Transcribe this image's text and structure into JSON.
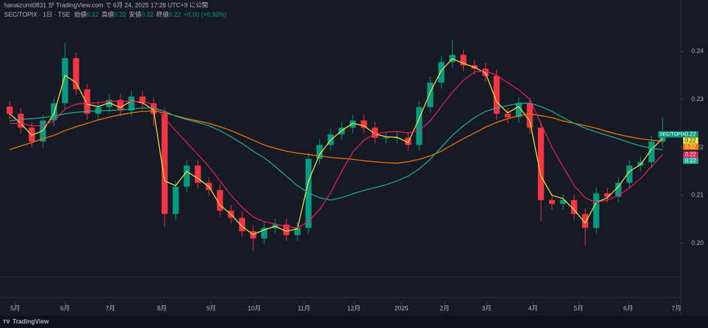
{
  "header": {
    "publisher": "hanaizumi0831 が TradingView.com で 6月 24, 2025 17:28 UTC+9 に公開"
  },
  "chart_data": {
    "type": "candlestick",
    "title": "SEC/TOPIX · 1日 · TSE",
    "quote": {
      "labels": [
        "始値",
        "高値",
        "安値",
        "終値"
      ],
      "values": [
        0.22,
        0.22,
        0.22,
        0.22
      ],
      "change": "+0.00 (+0.93%)"
    },
    "up_color": "#089981",
    "down_color": "#f23645",
    "xlim": [
      -0.5,
      60.6
    ],
    "xticks": [
      {
        "value": 0.5,
        "label": "5月"
      },
      {
        "value": 5,
        "label": "6月"
      },
      {
        "value": 9.1,
        "label": "7月"
      },
      {
        "value": 13.75,
        "label": "8月"
      },
      {
        "value": 18.2,
        "label": "9月"
      },
      {
        "value": 22.1,
        "label": "10月"
      },
      {
        "value": 26.6,
        "label": "11月"
      },
      {
        "value": 31.1,
        "label": "12月"
      },
      {
        "value": 35.4,
        "label": "2025"
      },
      {
        "value": 39.3,
        "label": "2月"
      },
      {
        "value": 43.1,
        "label": "3月"
      },
      {
        "value": 47.3,
        "label": "4月"
      },
      {
        "value": 51.4,
        "label": "5月"
      },
      {
        "value": 55.9,
        "label": "6月"
      },
      {
        "value": 60.25,
        "label": "7月"
      }
    ],
    "ylim": [
      0.193,
      0.249
    ],
    "yticks": [
      {
        "value": 0.2,
        "label": "0.20"
      },
      0.21,
      0.22,
      0.23,
      0.24
    ],
    "open": [
      0.2285,
      0.227,
      0.2241,
      0.2212,
      0.2256,
      0.2292,
      0.2386,
      0.2321,
      0.227,
      0.2284,
      0.2299,
      0.2277,
      0.2306,
      0.2292,
      0.227,
      0.2061,
      0.2118,
      0.2162,
      0.2126,
      0.2111,
      0.2068,
      0.2053,
      0.2025,
      0.201,
      0.2032,
      0.2039,
      0.2017,
      0.2032,
      0.2176,
      0.2205,
      0.2227,
      0.2241,
      0.2256,
      0.2241,
      0.222,
      0.222,
      0.222,
      0.2205,
      0.2284,
      0.2335,
      0.2378,
      0.2393,
      0.2371,
      0.2364,
      0.2349,
      0.227,
      0.2263,
      0.2292,
      0.2241,
      0.209,
      0.2082,
      0.209,
      0.2061,
      0.2032,
      0.2104,
      0.2097,
      0.2126,
      0.2162,
      0.2169,
      0.2212
    ],
    "high": [
      0.2297,
      0.2282,
      0.2253,
      0.2268,
      0.2304,
      0.2418,
      0.2398,
      0.2333,
      0.2296,
      0.2311,
      0.2311,
      0.2318,
      0.2318,
      0.2304,
      0.2282,
      0.213,
      0.2174,
      0.2174,
      0.2138,
      0.2123,
      0.208,
      0.2065,
      0.2037,
      0.2044,
      0.2051,
      0.2051,
      0.2044,
      0.2188,
      0.2217,
      0.2239,
      0.2253,
      0.2268,
      0.2268,
      0.2253,
      0.2232,
      0.2232,
      0.2232,
      0.2296,
      0.2347,
      0.239,
      0.2425,
      0.2405,
      0.2383,
      0.2376,
      0.2361,
      0.2282,
      0.2304,
      0.2304,
      0.2253,
      0.2102,
      0.2102,
      0.2102,
      0.2073,
      0.2116,
      0.2116,
      0.2138,
      0.2174,
      0.2181,
      0.2224,
      0.2262
    ],
    "low": [
      0.2258,
      0.2229,
      0.22,
      0.22,
      0.2244,
      0.228,
      0.2309,
      0.2258,
      0.2258,
      0.2272,
      0.2265,
      0.2265,
      0.228,
      0.2244,
      0.2035,
      0.2049,
      0.2106,
      0.2114,
      0.2099,
      0.2056,
      0.2041,
      0.2013,
      0.1985,
      0.1998,
      0.202,
      0.2005,
      0.2005,
      0.202,
      0.2164,
      0.2193,
      0.2215,
      0.2229,
      0.2229,
      0.2208,
      0.2208,
      0.2208,
      0.2193,
      0.2193,
      0.2272,
      0.2323,
      0.2366,
      0.2359,
      0.2352,
      0.2337,
      0.2258,
      0.2251,
      0.2251,
      0.2229,
      0.2045,
      0.207,
      0.207,
      0.2049,
      0.1995,
      0.202,
      0.2085,
      0.2085,
      0.2114,
      0.215,
      0.2157,
      0.22
    ],
    "close": [
      0.227,
      0.2241,
      0.2212,
      0.2256,
      0.2292,
      0.2386,
      0.2321,
      0.227,
      0.2284,
      0.2299,
      0.2277,
      0.2306,
      0.2292,
      0.227,
      0.2061,
      0.2118,
      0.2162,
      0.2126,
      0.2111,
      0.2068,
      0.2053,
      0.2025,
      0.201,
      0.2032,
      0.2039,
      0.2017,
      0.2032,
      0.2176,
      0.2205,
      0.2227,
      0.2241,
      0.2256,
      0.2241,
      0.222,
      0.222,
      0.222,
      0.2205,
      0.2284,
      0.2335,
      0.2378,
      0.2393,
      0.2371,
      0.2364,
      0.2349,
      0.227,
      0.2263,
      0.2292,
      0.2241,
      0.209,
      0.2082,
      0.209,
      0.2061,
      0.2032,
      0.2104,
      0.2097,
      0.2126,
      0.2162,
      0.2169,
      0.2212,
      0.2227
    ],
    "series": [
      {
        "color": "#f7e43a",
        "values": [
          0.227,
          0.225,
          0.2225,
          0.2235,
          0.227,
          0.235,
          0.2335,
          0.229,
          0.2285,
          0.2293,
          0.2283,
          0.2297,
          0.2293,
          0.2278,
          0.213,
          0.212,
          0.215,
          0.2135,
          0.2118,
          0.208,
          0.206,
          0.2035,
          0.2018,
          0.2028,
          0.2035,
          0.2025,
          0.203,
          0.213,
          0.2185,
          0.2215,
          0.2235,
          0.225,
          0.2245,
          0.2228,
          0.2222,
          0.2221,
          0.221,
          0.226,
          0.2315,
          0.236,
          0.2385,
          0.2375,
          0.2367,
          0.2355,
          0.2295,
          0.2272,
          0.2285,
          0.2255,
          0.214,
          0.21,
          0.2093,
          0.207,
          0.2042,
          0.2085,
          0.2095,
          0.2118,
          0.215,
          0.2164,
          0.2196,
          0.2218
        ]
      },
      {
        "color": "#f57c00",
        "values": [
          0.2195,
          0.2203,
          0.221,
          0.2218,
          0.2225,
          0.2235,
          0.2243,
          0.225,
          0.2257,
          0.2263,
          0.2268,
          0.2272,
          0.2275,
          0.2276,
          0.2272,
          0.2266,
          0.226,
          0.2255,
          0.225,
          0.2243,
          0.2235,
          0.2225,
          0.2215,
          0.2205,
          0.2198,
          0.2192,
          0.2188,
          0.2185,
          0.2182,
          0.2179,
          0.2177,
          0.2175,
          0.2172,
          0.217,
          0.2168,
          0.2167,
          0.217,
          0.2175,
          0.2182,
          0.2192,
          0.2205,
          0.2218,
          0.223,
          0.2242,
          0.2252,
          0.226,
          0.2266,
          0.227,
          0.2266,
          0.2262,
          0.2255,
          0.225,
          0.2245,
          0.224,
          0.2233,
          0.2227,
          0.2222,
          0.2218,
          0.2215,
          0.2213
        ]
      },
      {
        "color": "#e91e63",
        "values": [
          0.225,
          0.225,
          0.2245,
          0.2245,
          0.2255,
          0.228,
          0.229,
          0.2292,
          0.2293,
          0.2296,
          0.2296,
          0.2296,
          0.2295,
          0.229,
          0.226,
          0.2235,
          0.221,
          0.2185,
          0.216,
          0.213,
          0.21,
          0.2075,
          0.2055,
          0.2045,
          0.204,
          0.2035,
          0.2032,
          0.2045,
          0.207,
          0.2105,
          0.215,
          0.219,
          0.2215,
          0.2228,
          0.2232,
          0.2233,
          0.223,
          0.2235,
          0.2255,
          0.2285,
          0.2315,
          0.234,
          0.2357,
          0.236,
          0.235,
          0.2335,
          0.232,
          0.23,
          0.225,
          0.22,
          0.216,
          0.212,
          0.2095,
          0.2085,
          0.209,
          0.21,
          0.2115,
          0.2135,
          0.216,
          0.2185
        ]
      },
      {
        "color": "#22ab94",
        "values": [
          0.2255,
          0.2258,
          0.226,
          0.2262,
          0.2265,
          0.227,
          0.2273,
          0.2275,
          0.2276,
          0.2277,
          0.2278,
          0.228,
          0.2282,
          0.2282,
          0.2275,
          0.2265,
          0.2258,
          0.2252,
          0.2245,
          0.2235,
          0.2222,
          0.2208,
          0.2192,
          0.2178,
          0.216,
          0.214,
          0.212,
          0.2105,
          0.2095,
          0.209,
          0.2095,
          0.2103,
          0.211,
          0.2116,
          0.2122,
          0.213,
          0.214,
          0.2155,
          0.2175,
          0.22,
          0.2225,
          0.2245,
          0.2262,
          0.2275,
          0.2282,
          0.2287,
          0.2292,
          0.2292,
          0.2285,
          0.2275,
          0.2262,
          0.225,
          0.224,
          0.2232,
          0.2225,
          0.2218,
          0.221,
          0.2203,
          0.2198,
          0.2195
        ]
      }
    ],
    "price_tags": [
      {
        "text": "SEC/TOPIX",
        "value": 0.22,
        "color": "#089981"
      },
      {
        "value": 0.22,
        "color": "#f7e43a"
      },
      {
        "value": 0.22,
        "color": "#f57c00"
      },
      {
        "value": 0.22,
        "color": "#e91e63"
      },
      {
        "value": 0.22,
        "color": "#22ab94"
      }
    ]
  },
  "footer": {
    "brand": "TradingView"
  }
}
